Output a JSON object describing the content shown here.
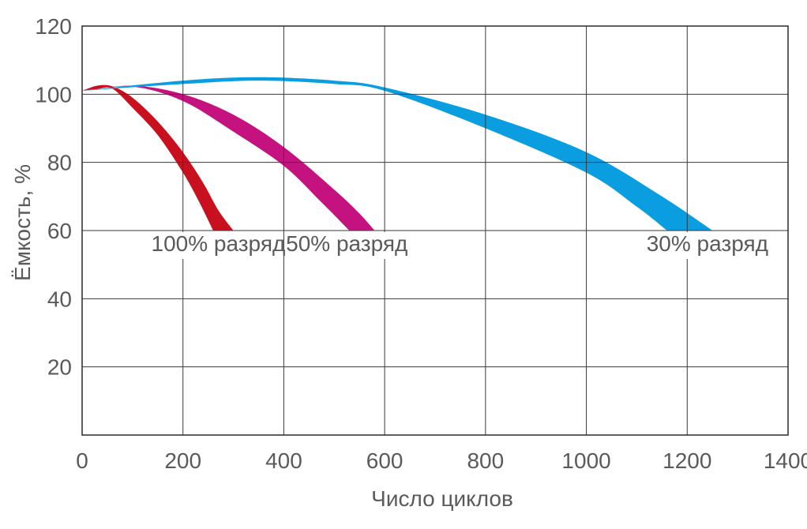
{
  "chart_data": {
    "type": "area",
    "title": "",
    "xlabel": "Число циклов",
    "ylabel": "Ёмкость, %",
    "xlim": [
      0,
      1400
    ],
    "ylim": [
      0,
      120
    ],
    "x_ticks": [
      "0",
      "200",
      "400",
      "600",
      "800",
      "1000",
      "1200",
      "1400"
    ],
    "y_ticks": [
      "20",
      "40",
      "60",
      "80",
      "100",
      "120"
    ],
    "grid": true,
    "series": [
      {
        "name": "100% разряд",
        "color": "#c8101e",
        "upper": [
          [
            0,
            101
          ],
          [
            30,
            102.5
          ],
          [
            60,
            102.3
          ],
          [
            100,
            99
          ],
          [
            150,
            92
          ],
          [
            200,
            83
          ],
          [
            240,
            74
          ],
          [
            270,
            66
          ],
          [
            300,
            60
          ]
        ],
        "lower": [
          [
            0,
            101
          ],
          [
            30,
            101.5
          ],
          [
            60,
            101.6
          ],
          [
            100,
            96
          ],
          [
            150,
            88
          ],
          [
            200,
            77
          ],
          [
            230,
            69
          ],
          [
            260,
            60
          ]
        ]
      },
      {
        "name": "50% разряд",
        "color": "#c4127f",
        "upper": [
          [
            0,
            101
          ],
          [
            100,
            102.5
          ],
          [
            200,
            100
          ],
          [
            300,
            94
          ],
          [
            400,
            84.5
          ],
          [
            500,
            72
          ],
          [
            550,
            65
          ],
          [
            580,
            60
          ]
        ],
        "lower": [
          [
            0,
            101
          ],
          [
            100,
            102.2
          ],
          [
            200,
            98
          ],
          [
            300,
            89
          ],
          [
            400,
            79
          ],
          [
            470,
            69
          ],
          [
            530,
            60
          ]
        ]
      },
      {
        "name": "30% разряд",
        "color": "#0a9ee0",
        "upper": [
          [
            0,
            101
          ],
          [
            200,
            104
          ],
          [
            350,
            105
          ],
          [
            500,
            104
          ],
          [
            600,
            102
          ],
          [
            800,
            94
          ],
          [
            1000,
            83
          ],
          [
            1150,
            70
          ],
          [
            1250,
            60
          ]
        ],
        "lower": [
          [
            0,
            101
          ],
          [
            200,
            103
          ],
          [
            350,
            104
          ],
          [
            500,
            103
          ],
          [
            600,
            101
          ],
          [
            800,
            90
          ],
          [
            1000,
            77
          ],
          [
            1100,
            67
          ],
          [
            1160,
            60
          ]
        ]
      }
    ],
    "annotations": [
      {
        "text": "100% разряд",
        "x": 270,
        "y": 54
      },
      {
        "text": "50% разряд",
        "x": 525,
        "y": 54
      },
      {
        "text": "30% разряд",
        "x": 1240,
        "y": 54
      }
    ]
  }
}
